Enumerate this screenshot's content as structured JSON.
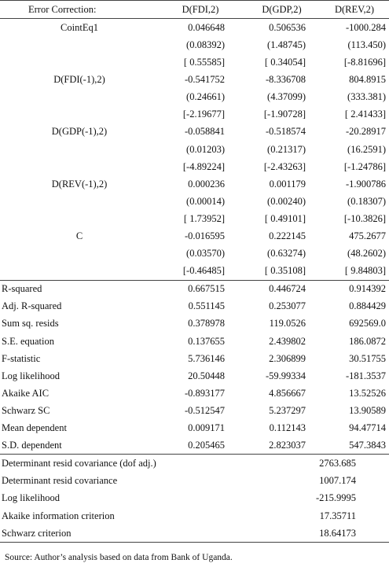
{
  "header": [
    "Error Correction:",
    "D(FDI,2)",
    "D(GDP,2)",
    "D(REV,2)"
  ],
  "coefficients": [
    {
      "label": "CointEq1",
      "rows": [
        [
          "0.046648",
          "0.506536",
          "-1000.284"
        ],
        [
          "(0.08392)",
          "(1.48745)",
          "(113.450)"
        ],
        [
          "[ 0.55585]",
          "[ 0.34054]",
          "[-8.81696]"
        ]
      ]
    },
    {
      "label": "D(FDI(-1),2)",
      "rows": [
        [
          "-0.541752",
          "-8.336708",
          "804.8915"
        ],
        [
          "(0.24661)",
          "(4.37099)",
          "(333.381)"
        ],
        [
          "[-2.19677]",
          "[-1.90728]",
          "[ 2.41433]"
        ]
      ]
    },
    {
      "label": "D(GDP(-1),2)",
      "rows": [
        [
          "-0.058841",
          "-0.518574",
          "-20.28917"
        ],
        [
          "(0.01203)",
          "(0.21317)",
          "(16.2591)"
        ],
        [
          "[-4.89224]",
          "[-2.43263]",
          "[-1.24786]"
        ]
      ]
    },
    {
      "label": "D(REV(-1),2)",
      "rows": [
        [
          "0.000236",
          "0.001179",
          "-1.900786"
        ],
        [
          "(0.00014)",
          "(0.00240)",
          "(0.18307)"
        ],
        [
          "[ 1.73952]",
          "[ 0.49101]",
          "[-10.3826]"
        ]
      ]
    },
    {
      "label": "C",
      "rows": [
        [
          "-0.016595",
          "0.222145",
          "475.2677"
        ],
        [
          "(0.03570)",
          "(0.63274)",
          "(48.2602)"
        ],
        [
          "[-0.46485]",
          "[ 0.35108]",
          "[ 9.84803]"
        ]
      ]
    }
  ],
  "statistics": [
    [
      "R-squared",
      "0.667515",
      "0.446724",
      "0.914392"
    ],
    [
      "Adj. R-squared",
      "0.551145",
      "0.253077",
      "0.884429"
    ],
    [
      "Sum sq. resids",
      "0.378978",
      "119.0526",
      "692569.0"
    ],
    [
      "S.E. equation",
      "0.137655",
      "2.439802",
      "186.0872"
    ],
    [
      "F-statistic",
      "5.736146",
      "2.306899",
      "30.51755"
    ],
    [
      "Log likelihood",
      "20.50448",
      "-59.99334",
      "-181.3537"
    ],
    [
      "Akaike AIC",
      "-0.893177",
      "4.856667",
      "13.52526"
    ],
    [
      "Schwarz SC",
      "-0.512547",
      "5.237297",
      "13.90589"
    ],
    [
      "Mean dependent",
      "0.009171",
      "0.112143",
      "94.47714"
    ],
    [
      "S.D. dependent",
      "0.205465",
      "2.823037",
      "547.3843"
    ]
  ],
  "system": [
    [
      "Determinant resid covariance (dof adj.)",
      "2763.685"
    ],
    [
      "Determinant resid covariance",
      "1007.174"
    ],
    [
      "Log likelihood",
      "-215.9995"
    ],
    [
      "Akaike information criterion",
      "17.35711"
    ],
    [
      "Schwarz criterion",
      "18.64173"
    ]
  ],
  "source": "Source: Author’s analysis based on data from Bank of Uganda."
}
